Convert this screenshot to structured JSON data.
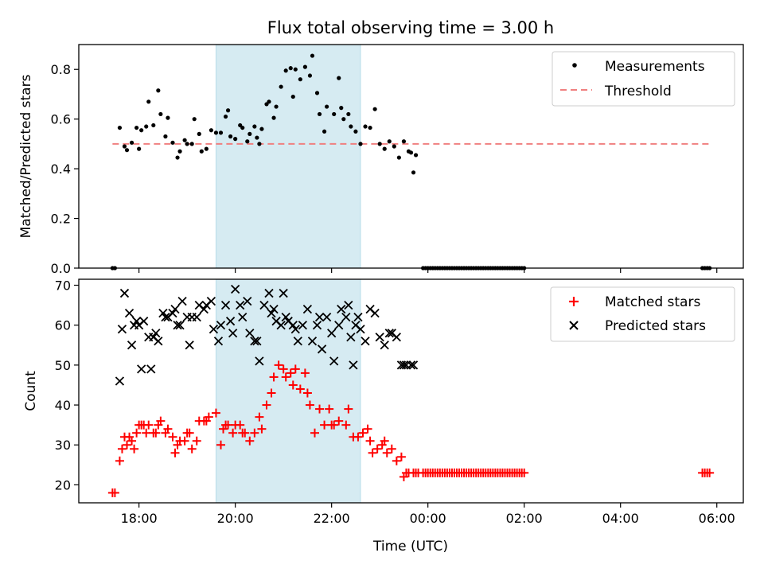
{
  "figure": {
    "title": "Flux total observing time = 3.00 h"
  },
  "chart_data": [
    {
      "type": "scatter",
      "ylabel": "Matched/Predicted stars",
      "xlabel": "",
      "xlim_hours": [
        16.75,
        30.55
      ],
      "ylim": [
        0,
        0.9
      ],
      "yticks": [
        0.0,
        0.2,
        0.4,
        0.6,
        0.8
      ],
      "ytick_labels": [
        "0.0",
        "0.2",
        "0.4",
        "0.6",
        "0.8"
      ],
      "xticks_hours": [
        18,
        20,
        22,
        24,
        26,
        28,
        30
      ],
      "shaded_span_hours": [
        19.6,
        22.6
      ],
      "legend": {
        "placement": "top-right",
        "entries": [
          "Measurements",
          "Threshold"
        ]
      },
      "threshold": {
        "name": "Threshold",
        "value": 0.5,
        "x_range_hours": [
          17.45,
          29.85
        ],
        "color": "#f08080"
      },
      "series": [
        {
          "name": "Measurements",
          "color": "#000000",
          "x_hours": [
            17.45,
            17.5,
            17.6,
            17.7,
            17.75,
            17.85,
            17.95,
            18.0,
            18.05,
            18.15,
            18.2,
            18.3,
            18.4,
            18.45,
            18.55,
            18.6,
            18.7,
            18.8,
            18.85,
            18.95,
            19.0,
            19.1,
            19.15,
            19.25,
            19.3,
            19.4,
            19.5,
            19.6,
            19.7,
            19.8,
            19.85,
            19.9,
            20.0,
            20.1,
            20.15,
            20.25,
            20.3,
            20.4,
            20.45,
            20.5,
            20.55,
            20.65,
            20.7,
            20.8,
            20.85,
            20.95,
            21.05,
            21.15,
            21.2,
            21.25,
            21.35,
            21.45,
            21.55,
            21.6,
            21.7,
            21.75,
            21.85,
            21.9,
            22.05,
            22.15,
            22.2,
            22.25,
            22.35,
            22.4,
            22.5,
            22.6,
            22.7,
            22.8,
            22.9,
            23.0,
            23.1,
            23.2,
            23.3,
            23.4,
            23.5,
            23.6,
            23.65,
            23.7,
            23.75,
            23.9,
            23.95,
            24.0,
            24.05,
            24.1,
            24.15,
            24.2,
            24.25,
            24.3,
            24.35,
            24.4,
            24.45,
            24.5,
            24.55,
            24.6,
            24.65,
            24.7,
            24.75,
            24.8,
            24.85,
            24.9,
            24.95,
            25.0,
            25.05,
            25.1,
            25.15,
            25.2,
            25.25,
            25.3,
            25.35,
            25.4,
            25.45,
            25.5,
            25.55,
            25.6,
            25.65,
            25.7,
            25.75,
            25.8,
            25.85,
            25.9,
            25.95,
            26.0,
            29.7,
            29.75,
            29.8,
            29.85
          ],
          "y": [
            0.0,
            0.0,
            0.565,
            0.49,
            0.475,
            0.505,
            0.565,
            0.48,
            0.555,
            0.57,
            0.67,
            0.575,
            0.715,
            0.62,
            0.53,
            0.605,
            0.505,
            0.445,
            0.47,
            0.515,
            0.5,
            0.5,
            0.6,
            0.54,
            0.47,
            0.48,
            0.555,
            0.545,
            0.545,
            0.61,
            0.635,
            0.53,
            0.52,
            0.575,
            0.565,
            0.51,
            0.54,
            0.57,
            0.525,
            0.5,
            0.56,
            0.66,
            0.67,
            0.605,
            0.65,
            0.73,
            0.795,
            0.805,
            0.69,
            0.8,
            0.76,
            0.81,
            0.775,
            0.855,
            0.705,
            0.62,
            0.55,
            0.65,
            0.62,
            0.765,
            0.645,
            0.6,
            0.62,
            0.57,
            0.55,
            0.5,
            0.57,
            0.565,
            0.64,
            0.5,
            0.48,
            0.51,
            0.49,
            0.445,
            0.51,
            0.47,
            0.465,
            0.385,
            0.455,
            0.0,
            0.0,
            0.0,
            0.0,
            0.0,
            0.0,
            0.0,
            0.0,
            0.0,
            0.0,
            0.0,
            0.0,
            0.0,
            0.0,
            0.0,
            0.0,
            0.0,
            0.0,
            0.0,
            0.0,
            0.0,
            0.0,
            0.0,
            0.0,
            0.0,
            0.0,
            0.0,
            0.0,
            0.0,
            0.0,
            0.0,
            0.0,
            0.0,
            0.0,
            0.0,
            0.0,
            0.0,
            0.0,
            0.0,
            0.0,
            0.0,
            0.0,
            0.0,
            0.0,
            0.0,
            0.0,
            0.0
          ]
        }
      ]
    },
    {
      "type": "scatter",
      "ylabel": "Count",
      "xlabel": "Time (UTC)",
      "xlim_hours": [
        16.75,
        30.55
      ],
      "ylim": [
        15.5,
        71.5
      ],
      "yticks": [
        20,
        30,
        40,
        50,
        60,
        70
      ],
      "ytick_labels": [
        "20",
        "30",
        "40",
        "50",
        "60",
        "70"
      ],
      "xticks_hours": [
        18,
        20,
        22,
        24,
        26,
        28,
        30
      ],
      "xtick_labels": [
        "18:00",
        "20:00",
        "22:00",
        "00:00",
        "02:00",
        "04:00",
        "06:00"
      ],
      "shaded_span_hours": [
        19.6,
        22.6
      ],
      "legend": {
        "placement": "top-right",
        "entries": [
          "Matched stars",
          "Predicted stars"
        ]
      },
      "series": [
        {
          "name": "Matched stars",
          "marker": "plus",
          "color": "#ff0000",
          "x_hours": [
            17.45,
            17.5,
            17.6,
            17.65,
            17.7,
            17.75,
            17.8,
            17.85,
            17.9,
            17.95,
            18.0,
            18.05,
            18.1,
            18.15,
            18.2,
            18.3,
            18.35,
            18.4,
            18.45,
            18.55,
            18.6,
            18.7,
            18.75,
            18.8,
            18.85,
            18.95,
            19.0,
            19.05,
            19.1,
            19.2,
            19.25,
            19.35,
            19.4,
            19.45,
            19.6,
            19.7,
            19.75,
            19.8,
            19.85,
            19.95,
            20.0,
            20.1,
            20.15,
            20.2,
            20.3,
            20.4,
            20.5,
            20.55,
            20.65,
            20.75,
            20.8,
            20.9,
            21.0,
            21.05,
            21.15,
            21.2,
            21.25,
            21.35,
            21.45,
            21.5,
            21.55,
            21.65,
            21.75,
            21.85,
            21.95,
            22.0,
            22.05,
            22.15,
            22.3,
            22.35,
            22.45,
            22.55,
            22.65,
            22.75,
            22.8,
            22.85,
            22.95,
            23.05,
            23.1,
            23.15,
            23.25,
            23.35,
            23.45,
            23.5,
            23.55,
            23.6,
            23.7,
            23.75,
            23.8,
            23.9,
            23.95,
            24.0,
            24.05,
            24.1,
            24.15,
            24.2,
            24.25,
            24.3,
            24.35,
            24.4,
            24.45,
            24.5,
            24.55,
            24.6,
            24.65,
            24.7,
            24.75,
            24.8,
            24.85,
            24.9,
            24.95,
            25.0,
            25.05,
            25.1,
            25.15,
            25.2,
            25.25,
            25.3,
            25.35,
            25.4,
            25.45,
            25.5,
            25.55,
            25.6,
            25.65,
            25.7,
            25.75,
            25.8,
            25.85,
            25.9,
            25.95,
            26.0,
            29.7,
            29.75,
            29.8,
            29.85
          ],
          "y": [
            18,
            18,
            26,
            29,
            32,
            30,
            32,
            31,
            29,
            33,
            35,
            35,
            35,
            33,
            35,
            33,
            33,
            35,
            36,
            33,
            34,
            32,
            28,
            30,
            31,
            31,
            33,
            33,
            29,
            31,
            36,
            36,
            36,
            37,
            38,
            30,
            34,
            35,
            35,
            33,
            35,
            35,
            33,
            33,
            31,
            33,
            37,
            34,
            40,
            43,
            47,
            50,
            49,
            47,
            48,
            45,
            49,
            44,
            48,
            43,
            40,
            33,
            39,
            35,
            39,
            35,
            35,
            36,
            35,
            39,
            32,
            32,
            33,
            34,
            31,
            28,
            29,
            30,
            31,
            28,
            29,
            26,
            27,
            22,
            23,
            23,
            23,
            23,
            23,
            23,
            23,
            23,
            23,
            23,
            23,
            23,
            23,
            23,
            23,
            23,
            23,
            23,
            23,
            23,
            23,
            23,
            23,
            23,
            23,
            23,
            23,
            23,
            23,
            23,
            23,
            23,
            23,
            23,
            23,
            23,
            23,
            23,
            23,
            23,
            23,
            23,
            23,
            23,
            23,
            23,
            23,
            23,
            23,
            23,
            23,
            23
          ]
        },
        {
          "name": "Predicted stars",
          "marker": "x",
          "color": "#000000",
          "x_hours": [
            17.6,
            17.65,
            17.7,
            17.8,
            17.85,
            17.9,
            17.95,
            18.0,
            18.05,
            18.1,
            18.2,
            18.25,
            18.3,
            18.35,
            18.4,
            18.5,
            18.55,
            18.6,
            18.7,
            18.75,
            18.8,
            18.85,
            18.9,
            19.0,
            19.05,
            19.1,
            19.2,
            19.25,
            19.35,
            19.4,
            19.5,
            19.55,
            19.65,
            19.7,
            19.8,
            19.9,
            19.95,
            20.0,
            20.1,
            20.15,
            20.25,
            20.3,
            20.4,
            20.45,
            20.5,
            20.6,
            20.7,
            20.75,
            20.8,
            20.85,
            20.95,
            21.0,
            21.05,
            21.1,
            21.2,
            21.25,
            21.3,
            21.4,
            21.5,
            21.6,
            21.7,
            21.75,
            21.8,
            21.9,
            22.0,
            22.05,
            22.15,
            22.2,
            22.3,
            22.35,
            22.4,
            22.45,
            22.5,
            22.55,
            22.6,
            22.7,
            22.8,
            22.9,
            23.0,
            23.1,
            23.2,
            23.25,
            23.35,
            23.45,
            23.5,
            23.55,
            23.65,
            23.7
          ],
          "y": [
            46,
            59,
            68,
            63,
            55,
            60,
            61,
            60,
            49,
            61,
            57,
            49,
            57,
            58,
            56,
            63,
            62,
            62,
            63,
            64,
            60,
            60,
            66,
            62,
            55,
            62,
            62,
            65,
            64,
            65,
            66,
            59,
            56,
            60,
            65,
            61,
            58,
            69,
            65,
            62,
            66,
            58,
            56,
            56,
            51,
            65,
            68,
            63,
            64,
            61,
            60,
            68,
            62,
            61,
            60,
            59,
            56,
            60,
            64,
            56,
            60,
            62,
            54,
            62,
            58,
            51,
            60,
            64,
            62,
            65,
            57,
            50,
            60,
            62,
            59,
            56,
            64,
            63,
            57,
            55,
            58,
            58,
            57,
            50,
            50,
            50,
            50,
            50
          ]
        }
      ]
    }
  ]
}
